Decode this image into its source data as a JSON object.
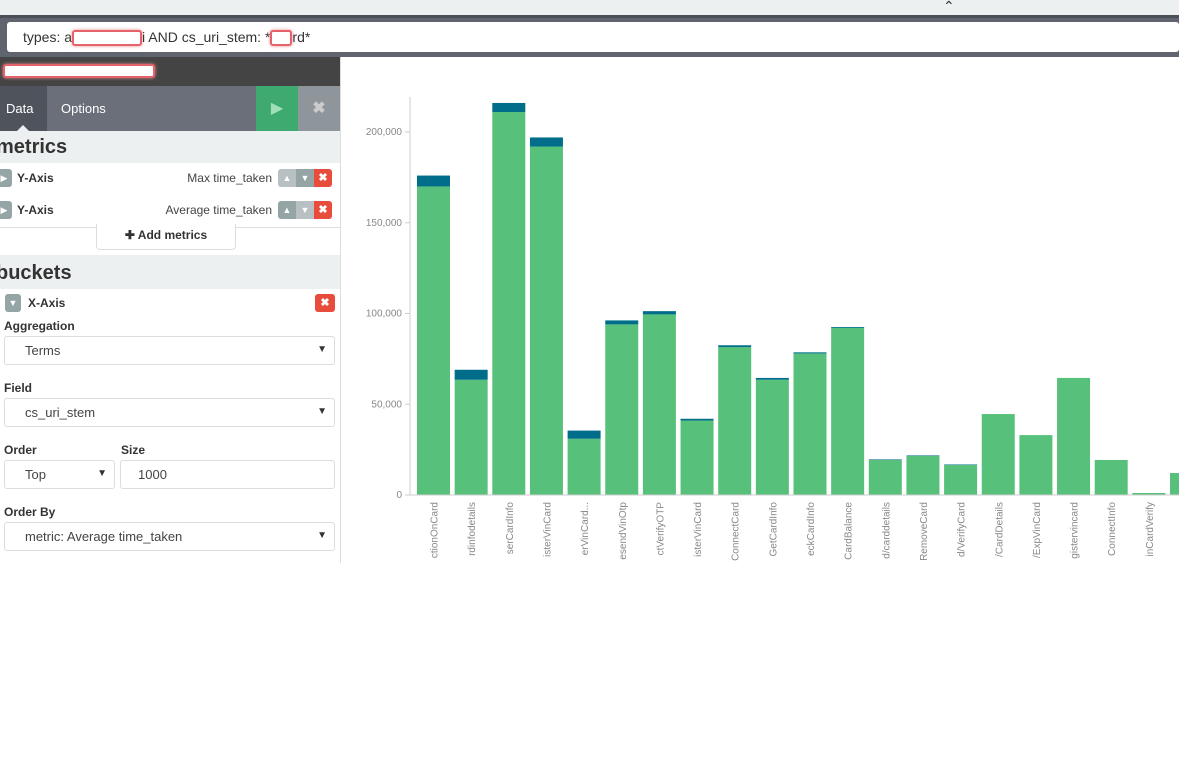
{
  "query": {
    "prefix": "types: a",
    "middle": "i AND cs_uri_stem: *",
    "suffix": "rd*"
  },
  "tabs": [
    {
      "label": "Data",
      "active": true
    },
    {
      "label": "Options",
      "active": false
    }
  ],
  "icons": {
    "run": "play-icon",
    "discard": "close-icon",
    "collapse": "caret-up-icon"
  },
  "metrics": {
    "heading": "metrics",
    "items": [
      {
        "label": "Y-Axis",
        "value": "Max time_taken"
      },
      {
        "label": "Y-Axis",
        "value": "Average time_taken"
      }
    ],
    "add_label": "Add metrics"
  },
  "buckets": {
    "heading": "buckets",
    "label": "X-Axis",
    "aggregation_label": "Aggregation",
    "aggregation": "Terms",
    "field_label": "Field",
    "field": "cs_uri_stem",
    "order_label": "Order",
    "order": "Top",
    "size_label": "Size",
    "size": "1000",
    "order_by_label": "Order By",
    "order_by": "metric: Average time_taken"
  },
  "colors": {
    "green": "#57c17b",
    "blue": "#006e8a",
    "run": "#3faa70",
    "delete": "#e74c3c"
  },
  "chart_data": {
    "type": "bar",
    "stacked": true,
    "ylim": [
      0,
      220000
    ],
    "grid": false,
    "yticks": [
      "0",
      "50,000",
      "100,000",
      "150,000",
      "200,000"
    ],
    "ytick_values": [
      0,
      50000,
      100000,
      150000,
      200000
    ],
    "categories": [
      "ctionOnCard",
      "rdinfodetails",
      "serCardInfo",
      "isterVinCard",
      "erVinCard...",
      "esendVinOtp",
      "ctVerifyOTP",
      "isterVinCard",
      "ConnectCard",
      "GetCardInfo",
      "eckCardInfo",
      "CardBalance",
      "d/carddetails",
      "RemoveCard",
      "d/VerifyCard",
      "/CardDetails",
      "/ExpVinCard",
      "gistervincard",
      "ConnectInfo",
      "inCardVerify",
      ""
    ],
    "series": [
      {
        "color": "#57c17b",
        "values": [
          170000,
          63500,
          211000,
          192000,
          31000,
          94000,
          99500,
          41000,
          81500,
          63500,
          78000,
          92000,
          19300,
          21500,
          16500,
          44600,
          33000,
          64500,
          19300,
          1100,
          12100
        ]
      },
      {
        "color": "#006e8a",
        "values": [
          6000,
          5500,
          5000,
          5000,
          4500,
          2200,
          1800,
          1000,
          1000,
          1000,
          600,
          500,
          300,
          300,
          300,
          0,
          0,
          0,
          0,
          0,
          0
        ]
      }
    ]
  }
}
